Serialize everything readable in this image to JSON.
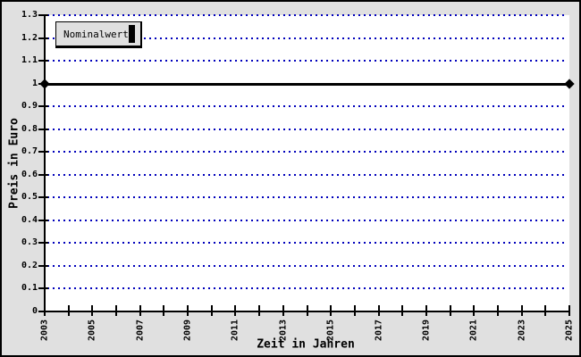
{
  "chart_data": {
    "type": "line",
    "title": "",
    "xlabel": "Zeit in Jahren",
    "ylabel": "Preis in Euro",
    "xlim": [
      2003,
      2025
    ],
    "ylim": [
      0,
      1.3
    ],
    "x_minor_tick_step_years": 1,
    "x_tick_labels": [
      "2003",
      "2005",
      "2007",
      "2009",
      "2011",
      "2013",
      "2015",
      "2017",
      "2019",
      "2021",
      "2023",
      "2025"
    ],
    "y_tick_labels": [
      "1.3",
      "1.2",
      "1.1",
      "1",
      "0.9",
      "0.8",
      "0.7",
      "0.6",
      "0.5",
      "0.4",
      "0.3",
      "0.2",
      "0.1",
      "0"
    ],
    "grid": "horizontal dotted blue lines at every 0.1",
    "legend_position": "top-left",
    "series": [
      {
        "name": "Nominalwert",
        "color": "#000000",
        "marker": "diamond",
        "x": [
          2003,
          2025
        ],
        "values": [
          1.0,
          1.0
        ]
      }
    ]
  },
  "legend": {
    "label": "Nominalwert"
  },
  "colors": {
    "background": "#e0e0e0",
    "plot_background": "#ffffff",
    "grid": "#0000bb",
    "axis": "#000000",
    "series": "#000000",
    "border": "#000000"
  }
}
